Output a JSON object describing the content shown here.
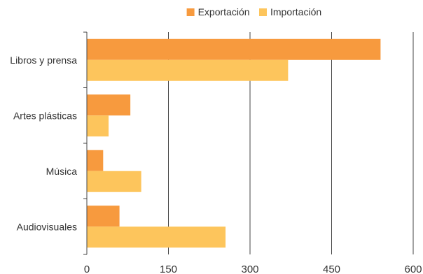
{
  "chart_data": {
    "type": "bar",
    "orientation": "horizontal",
    "categories": [
      "Libros y prensa",
      "Artes plásticas",
      "Música",
      "Audiovisuales"
    ],
    "series": [
      {
        "name": "Exportación",
        "values": [
          540,
          80,
          30,
          60
        ],
        "color": "#F79A3E"
      },
      {
        "name": "Importación",
        "values": [
          370,
          40,
          100,
          255
        ],
        "color": "#FDC55C"
      }
    ],
    "xticks": [
      0,
      150,
      300,
      450,
      600
    ],
    "xlim": [
      0,
      600
    ],
    "grid": true,
    "legend_position": "top-center",
    "title": "",
    "xlabel": "",
    "ylabel": ""
  }
}
